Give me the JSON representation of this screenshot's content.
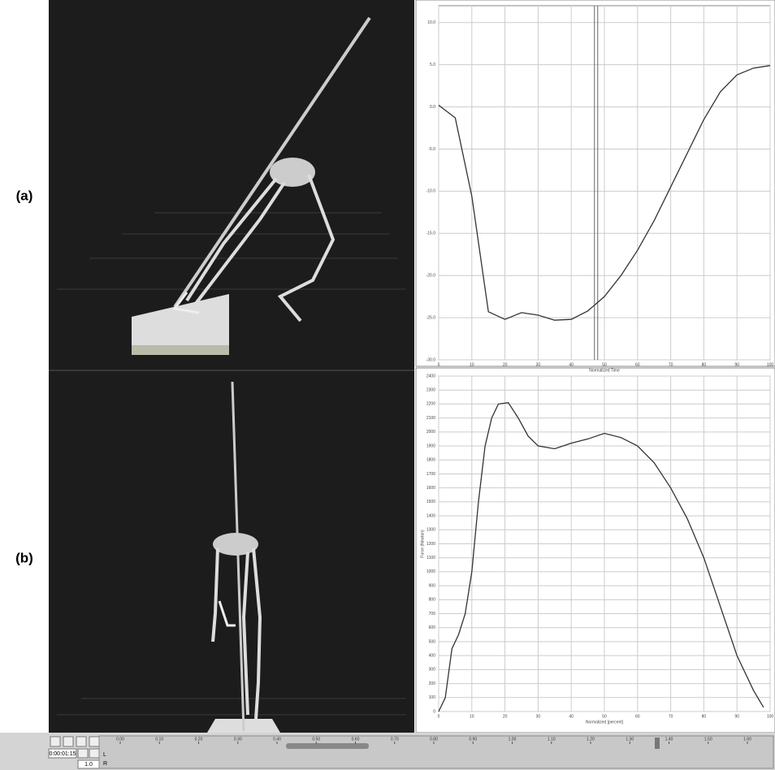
{
  "panel_labels": [
    "(a)",
    "(b)"
  ],
  "chart_data": [
    {
      "type": "line",
      "x_label": "Normalized Time",
      "x": [
        0,
        5,
        10,
        15,
        20,
        25,
        30,
        35,
        40,
        45,
        50,
        55,
        60,
        65,
        70,
        75,
        80,
        85,
        90,
        95,
        100
      ],
      "series": [
        {
          "color": "#333333",
          "values": [
            0.2,
            -1.3,
            -10.6,
            -24.3,
            -25.2,
            -24.4,
            -24.7,
            -25.3,
            -25.2,
            -24.2,
            -22.5,
            -20,
            -17,
            -13.5,
            -9.5,
            -5.5,
            -1.5,
            1.8,
            3.8,
            4.6,
            4.9
          ]
        }
      ],
      "xlim": [
        0,
        100
      ],
      "xticks": [
        0,
        10,
        20,
        30,
        40,
        50,
        60,
        70,
        80,
        90,
        100
      ],
      "ylim": [
        -30,
        12
      ],
      "yticks": [
        {
          "value": -30,
          "label": "-30.0"
        },
        {
          "value": -25,
          "label": "-25.0"
        },
        {
          "value": -20,
          "label": "-20.0"
        },
        {
          "value": -15,
          "label": "-15.0"
        },
        {
          "value": -10,
          "label": "-10.0"
        },
        {
          "value": -5,
          "label": "-5.0"
        },
        {
          "value": 0,
          "label": "0.0"
        },
        {
          "value": 5,
          "label": "5.0"
        },
        {
          "value": 10,
          "label": "10.0"
        }
      ],
      "cursor_x": 47,
      "grid": true
    },
    {
      "type": "line",
      "x_label": "Normalized [percent]",
      "y_label": "Force (Newton)",
      "x": [
        0,
        2,
        4,
        6,
        8,
        10,
        12,
        14,
        16,
        18,
        21,
        24,
        27,
        30,
        35,
        40,
        45,
        50,
        55,
        60,
        65,
        70,
        75,
        80,
        85,
        90,
        95,
        98
      ],
      "series": [
        {
          "color": "#333333",
          "values": [
            0,
            100,
            450,
            550,
            700,
            1000,
            1500,
            1900,
            2100,
            2200,
            2210,
            2100,
            1970,
            1900,
            1880,
            1920,
            1950,
            1990,
            1960,
            1900,
            1780,
            1600,
            1380,
            1100,
            750,
            400,
            150,
            30
          ]
        }
      ],
      "xlim": [
        0,
        100
      ],
      "xticks": [
        0,
        10,
        20,
        30,
        40,
        50,
        60,
        70,
        80,
        90,
        100
      ],
      "ylim": [
        0,
        2400
      ],
      "yticks": [
        0,
        100,
        200,
        300,
        400,
        500,
        600,
        700,
        800,
        900,
        1000,
        1100,
        1200,
        1300,
        1400,
        1500,
        1600,
        1700,
        1800,
        1900,
        2000,
        2100,
        2200,
        2300,
        2400
      ],
      "grid": true
    }
  ],
  "timeline": {
    "time": "0:00:01:15",
    "speed": "1.0",
    "rows": [
      "L",
      "R"
    ],
    "ticks": [
      "0.00",
      "0.10",
      "0.20",
      "0.30",
      "0.40",
      "0.50",
      "0.60",
      "0.70",
      "0.80",
      "0.90",
      "1.00",
      "1.10",
      "1.20",
      "1.30",
      "1.40",
      "1.50",
      "1.60"
    ]
  }
}
